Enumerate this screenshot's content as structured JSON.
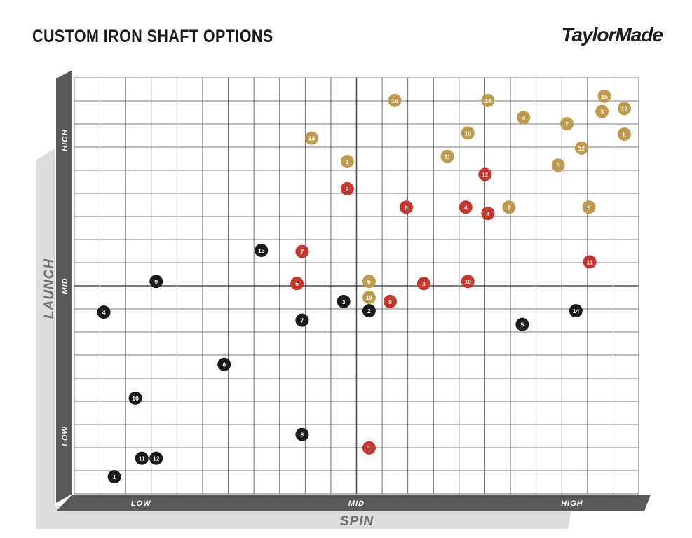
{
  "header": {
    "title": "CUSTOM IRON SHAFT OPTIONS",
    "brand": "TaylorMade"
  },
  "chart_data": {
    "type": "scatter",
    "title": "CUSTOM IRON SHAFT OPTIONS",
    "xlabel": "SPIN",
    "ylabel": "LAUNCH",
    "x_ticks": [
      "LOW",
      "MID",
      "HIGH"
    ],
    "y_ticks": [
      "LOW",
      "MID",
      "HIGH"
    ],
    "xlim": [
      0,
      22
    ],
    "ylim": [
      0,
      18
    ],
    "grid": true,
    "legend": "none",
    "colors": {
      "black": "#1a1a1a",
      "red": "#c8352b",
      "gold": "#bf9a4c",
      "axis_dark": "#58595b",
      "axis_shadow": "#dcdddf",
      "grid": "#4d4d4f"
    },
    "series": [
      {
        "color": "black",
        "points": [
          {
            "label": "1",
            "x": 1.56,
            "y": 0.74
          },
          {
            "label": "2",
            "x": 11.49,
            "y": 7.92
          },
          {
            "label": "3",
            "x": 10.5,
            "y": 8.32
          },
          {
            "label": "4",
            "x": 1.15,
            "y": 7.86
          },
          {
            "label": "5",
            "x": 17.46,
            "y": 7.33
          },
          {
            "label": "6",
            "x": 5.84,
            "y": 5.6
          },
          {
            "label": "7",
            "x": 8.88,
            "y": 7.51
          },
          {
            "label": "8",
            "x": 8.88,
            "y": 2.57
          },
          {
            "label": "9",
            "x": 3.19,
            "y": 9.19
          },
          {
            "label": "10",
            "x": 2.38,
            "y": 4.14
          },
          {
            "label": "11",
            "x": 2.63,
            "y": 1.54
          },
          {
            "label": "12",
            "x": 3.19,
            "y": 1.54
          },
          {
            "label": "13",
            "x": 7.29,
            "y": 10.53
          },
          {
            "label": "14",
            "x": 19.55,
            "y": 7.92
          }
        ]
      },
      {
        "color": "red",
        "points": [
          {
            "label": "1",
            "x": 11.49,
            "y": 1.99
          },
          {
            "label": "2",
            "x": 10.64,
            "y": 13.2
          },
          {
            "label": "3",
            "x": 13.62,
            "y": 9.1
          },
          {
            "label": "4",
            "x": 15.26,
            "y": 12.4
          },
          {
            "label": "5",
            "x": 8.68,
            "y": 9.1
          },
          {
            "label": "6",
            "x": 12.94,
            "y": 12.4
          },
          {
            "label": "7",
            "x": 8.88,
            "y": 10.48
          },
          {
            "label": "8",
            "x": 16.12,
            "y": 12.13
          },
          {
            "label": "9",
            "x": 12.31,
            "y": 8.32
          },
          {
            "label": "10",
            "x": 15.34,
            "y": 9.19
          },
          {
            "label": "11",
            "x": 20.09,
            "y": 10.03
          },
          {
            "label": "12",
            "x": 16.01,
            "y": 13.82
          }
        ]
      },
      {
        "color": "gold",
        "points": [
          {
            "label": "1",
            "x": 10.64,
            "y": 14.38
          },
          {
            "label": "2",
            "x": 16.94,
            "y": 12.4
          },
          {
            "label": "3",
            "x": 20.57,
            "y": 16.54
          },
          {
            "label": "4",
            "x": 17.51,
            "y": 16.28
          },
          {
            "label": "5",
            "x": 20.06,
            "y": 12.4
          },
          {
            "label": "6",
            "x": 11.49,
            "y": 9.19
          },
          {
            "label": "7",
            "x": 19.2,
            "y": 16.01
          },
          {
            "label": "8",
            "x": 21.44,
            "y": 15.56
          },
          {
            "label": "9",
            "x": 18.86,
            "y": 14.22
          },
          {
            "label": "10",
            "x": 15.34,
            "y": 15.61
          },
          {
            "label": "11",
            "x": 14.54,
            "y": 14.6
          },
          {
            "label": "12",
            "x": 19.77,
            "y": 14.96
          },
          {
            "label": "13",
            "x": 9.25,
            "y": 15.39
          },
          {
            "label": "14",
            "x": 16.12,
            "y": 17.02
          },
          {
            "label": "15",
            "x": 20.66,
            "y": 17.2
          },
          {
            "label": "16",
            "x": 12.49,
            "y": 17.02
          },
          {
            "label": "17",
            "x": 21.44,
            "y": 16.67
          },
          {
            "label": "18",
            "x": 11.49,
            "y": 8.5
          }
        ]
      }
    ]
  }
}
